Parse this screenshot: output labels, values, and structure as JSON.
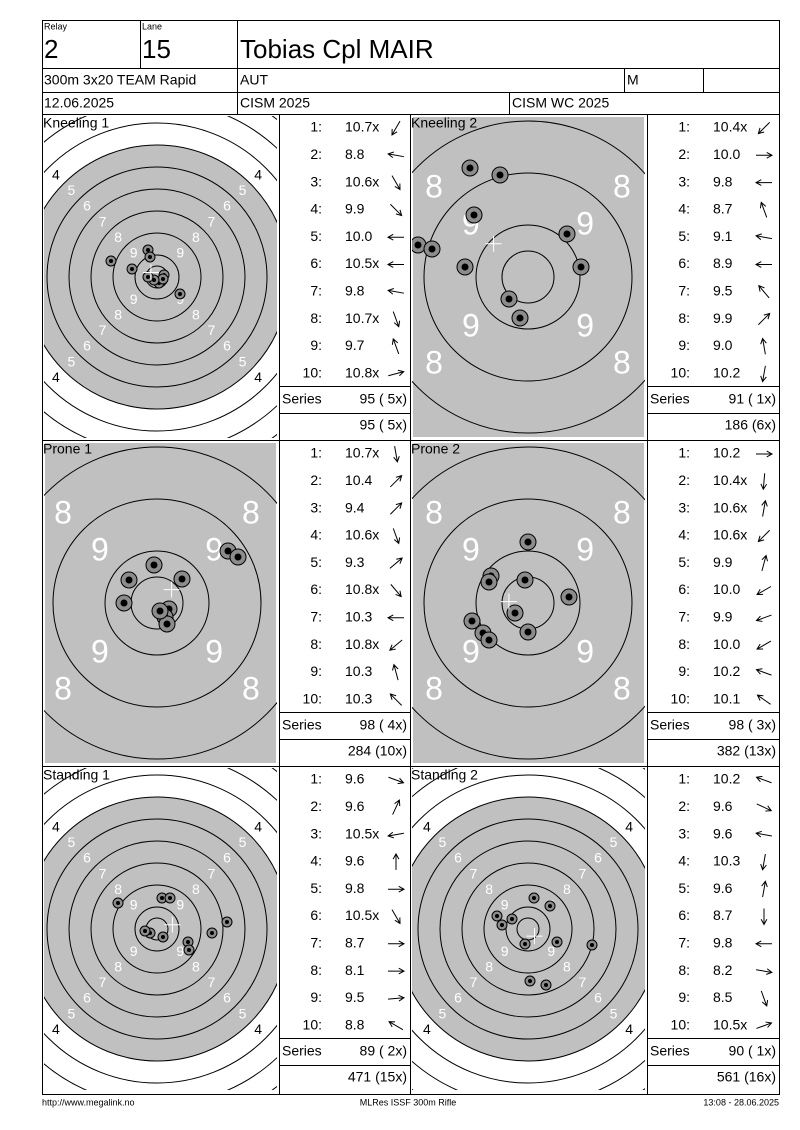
{
  "header": {
    "relay_label": "Relay",
    "relay": 2,
    "lane_label": "Lane",
    "lane": 15,
    "name": "Tobias Cpl MAIR",
    "event": "300m 3x20 TEAM Rapid",
    "nation": "AUT",
    "gender": "M",
    "date": "12.06.2025",
    "competition": "CISM 2025",
    "championship": "CISM WC 2025"
  },
  "rings": {
    "full": [
      4,
      5,
      6,
      7,
      8,
      9
    ],
    "zoom": [
      8,
      9
    ]
  },
  "shot_numbers": [
    "1:",
    "2:",
    "3:",
    "4:",
    "5:",
    "6:",
    "7:",
    "8:",
    "9:",
    "10:"
  ],
  "series_label": "Series",
  "series": [
    {
      "title": "Kneeling 1",
      "view": "full",
      "shots": [
        "10.7x",
        "8.8",
        "10.6x",
        "9.9",
        "10.0",
        "10.5x",
        "9.8",
        "10.7x",
        "9.7",
        "10.8x"
      ],
      "total": "95 ( 5x)",
      "running": "95 ( 5x)"
    },
    {
      "title": "Kneeling 2",
      "view": "zoom",
      "shots": [
        "10.4x",
        "10.0",
        "9.8",
        "8.7",
        "9.1",
        "8.9",
        "9.5",
        "9.9",
        "9.0",
        "10.2"
      ],
      "total": "91 ( 1x)",
      "running": "186 (6x)"
    },
    {
      "title": "Prone 1",
      "view": "zoom",
      "shots": [
        "10.7x",
        "10.4",
        "9.4",
        "10.6x",
        "9.3",
        "10.8x",
        "10.3",
        "10.8x",
        "10.3",
        "10.3"
      ],
      "total": "98 ( 4x)",
      "running": "284 (10x)"
    },
    {
      "title": "Prone 2",
      "view": "zoom",
      "shots": [
        "10.2",
        "10.4x",
        "10.6x",
        "10.6x",
        "9.9",
        "10.0",
        "9.9",
        "10.0",
        "10.2",
        "10.1"
      ],
      "total": "98 ( 3x)",
      "running": "382 (13x)"
    },
    {
      "title": "Standing 1",
      "view": "full",
      "shots": [
        "9.6",
        "9.6",
        "10.5x",
        "9.6",
        "9.8",
        "10.5x",
        "8.7",
        "8.1",
        "9.5",
        "8.8"
      ],
      "total": "89 ( 2x)",
      "running": "471 (15x)"
    },
    {
      "title": "Standing 2",
      "view": "full",
      "shots": [
        "10.2",
        "9.6",
        "9.6",
        "10.3",
        "9.6",
        "8.7",
        "9.8",
        "8.2",
        "8.5",
        "10.5x"
      ],
      "total": "90 ( 1x)",
      "running": "561 (16x)"
    }
  ],
  "footer": {
    "left": "http://www.megalink.no",
    "center": "MLRes ISSF 300m Rifle",
    "right": "13:08 - 28.06.2025"
  }
}
